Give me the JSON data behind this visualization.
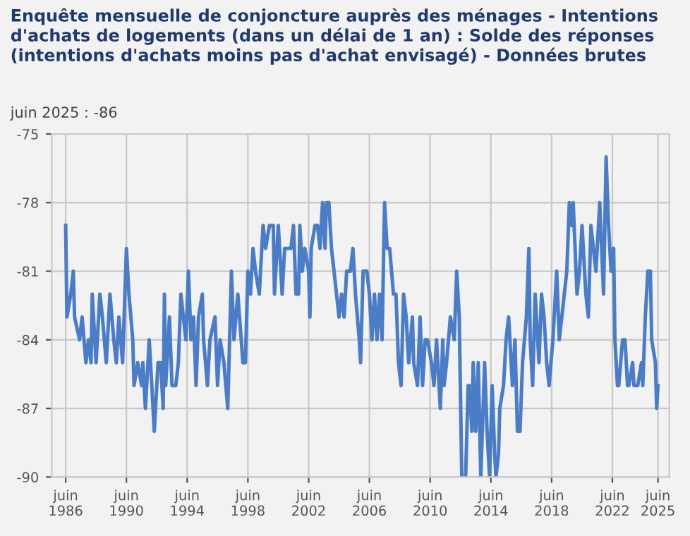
{
  "chart_data": {
    "type": "line",
    "title": "Enquête mensuelle de conjoncture auprès des ménages - Intentions d'achats de logements (dans un délai de 1 an) : Solde des réponses (intentions d'achats moins pas d'achat envisagé) - Données brutes",
    "subtitle": "juin 2025 : -86",
    "series": [
      {
        "color": "#4a7cc7",
        "x": [
          "1986-06",
          "1986-07",
          "1986-10",
          "1986-12",
          "1987-01",
          "1987-05",
          "1987-07",
          "1987-10",
          "1987-12",
          "1988-02",
          "1988-03",
          "1988-06",
          "1988-09",
          "1988-11",
          "1989-02",
          "1989-05",
          "1989-08",
          "1989-10",
          "1989-12",
          "1990-03",
          "1990-06",
          "1990-08",
          "1990-11",
          "1990-12",
          "1991-03",
          "1991-06",
          "1991-07",
          "1991-09",
          "1991-12",
          "1992-02",
          "1992-04",
          "1992-07",
          "1992-09",
          "1992-11",
          "1992-12",
          "1993-01",
          "1993-04",
          "1993-06",
          "1993-09",
          "1993-11",
          "1994-01",
          "1994-03",
          "1994-05",
          "1994-07",
          "1994-09",
          "1994-11",
          "1995-01",
          "1995-03",
          "1995-06",
          "1995-07",
          "1995-10",
          "1995-12",
          "1996-04",
          "1996-06",
          "1996-08",
          "1996-11",
          "1997-02",
          "1997-05",
          "1997-07",
          "1997-10",
          "1998-02",
          "1998-04",
          "1998-06",
          "1998-08",
          "1998-10",
          "1998-12",
          "1999-03",
          "1999-06",
          "1999-08",
          "1999-11",
          "2000-02",
          "2000-03",
          "2000-06",
          "2000-09",
          "2000-11",
          "2001-04",
          "2001-06",
          "2001-08",
          "2001-10",
          "2001-11",
          "2002-01",
          "2002-03",
          "2002-06",
          "2002-07",
          "2002-08",
          "2002-11",
          "2003-01",
          "2003-03",
          "2003-05",
          "2003-07",
          "2003-08",
          "2003-10",
          "2003-12",
          "2004-02",
          "2004-04",
          "2004-06",
          "2004-08",
          "2004-10",
          "2004-12",
          "2005-03",
          "2005-05",
          "2005-07",
          "2005-10",
          "2005-11",
          "2006-01",
          "2006-04",
          "2006-06",
          "2006-08",
          "2006-10",
          "2006-12",
          "2007-02",
          "2007-04",
          "2007-06",
          "2007-08",
          "2007-10",
          "2008-01",
          "2008-03",
          "2008-05",
          "2008-07",
          "2008-09",
          "2008-11",
          "2009-01",
          "2009-04",
          "2009-05",
          "2009-08",
          "2009-10",
          "2009-12",
          "2010-02",
          "2010-04",
          "2010-07",
          "2010-09",
          "2010-11",
          "2011-02",
          "2011-04",
          "2011-05",
          "2011-07",
          "2011-10",
          "2012-01",
          "2012-03",
          "2012-05",
          "2012-07",
          "2012-10",
          "2012-12",
          "2013-01",
          "2013-03",
          "2013-04",
          "2013-06",
          "2013-08",
          "2013-10",
          "2014-01",
          "2014-03",
          "2014-05",
          "2014-07",
          "2014-09",
          "2014-10",
          "2014-12",
          "2015-01",
          "2015-04",
          "2015-06",
          "2015-08",
          "2015-09",
          "2015-11",
          "2016-01",
          "2016-03",
          "2016-05",
          "2016-07",
          "2016-10",
          "2016-12",
          "2017-01",
          "2017-03",
          "2017-05",
          "2017-08",
          "2017-10",
          "2017-12",
          "2018-02",
          "2018-04",
          "2018-07",
          "2018-10",
          "2018-12",
          "2019-02",
          "2019-04",
          "2019-06",
          "2019-08",
          "2019-10",
          "2019-11",
          "2020-02",
          "2020-04",
          "2020-06",
          "2020-09",
          "2020-11",
          "2021-01",
          "2021-03",
          "2021-05",
          "2021-08",
          "2021-11",
          "2022-01",
          "2022-03",
          "2022-05",
          "2022-07",
          "2022-08",
          "2022-10",
          "2022-11",
          "2023-02",
          "2023-04",
          "2023-06",
          "2023-07",
          "2023-10",
          "2023-11",
          "2024-02",
          "2024-05",
          "2024-06",
          "2024-08",
          "2024-10",
          "2024-12",
          "2025-01",
          "2025-04",
          "2025-05",
          "2025-06"
        ],
        "values": [
          -79,
          -83,
          -82,
          -81,
          -83,
          -84,
          -83,
          -85,
          -84,
          -85,
          -82,
          -85,
          -82,
          -83,
          -85,
          -82,
          -84,
          -85,
          -83,
          -85,
          -80,
          -82,
          -84,
          -86,
          -85,
          -86,
          -85,
          -87,
          -84,
          -86,
          -88,
          -85,
          -85,
          -87,
          -82,
          -86,
          -83,
          -86,
          -86,
          -85,
          -82,
          -83,
          -84,
          -81,
          -84,
          -83,
          -86,
          -83,
          -82,
          -84,
          -86,
          -84,
          -83,
          -86,
          -84,
          -85,
          -87,
          -81,
          -84,
          -82,
          -85,
          -85,
          -81,
          -82,
          -80,
          -81,
          -82,
          -79,
          -80,
          -79,
          -79,
          -82,
          -79,
          -82,
          -80,
          -80,
          -79,
          -82,
          -82,
          -79,
          -81,
          -80,
          -81,
          -83,
          -80,
          -79,
          -79,
          -80,
          -78,
          -80,
          -78,
          -78,
          -80,
          -81,
          -82,
          -83,
          -82,
          -83,
          -81,
          -81,
          -80,
          -82,
          -84,
          -85,
          -81,
          -81,
          -82,
          -84,
          -82,
          -84,
          -82,
          -84,
          -78,
          -80,
          -80,
          -82,
          -82,
          -85,
          -86,
          -82,
          -83,
          -85,
          -83,
          -85,
          -86,
          -83,
          -86,
          -84,
          -84,
          -85,
          -86,
          -84,
          -87,
          -84,
          -86,
          -85,
          -83,
          -84,
          -81,
          -83,
          -90,
          -90,
          -86,
          -86,
          -88,
          -85,
          -88,
          -85,
          -90,
          -85,
          -88,
          -90,
          -86,
          -89,
          -90,
          -89,
          -87,
          -86,
          -84,
          -83,
          -84,
          -86,
          -84,
          -88,
          -88,
          -85,
          -83,
          -80,
          -84,
          -86,
          -82,
          -85,
          -82,
          -83,
          -85,
          -86,
          -84,
          -81,
          -84,
          -83,
          -82,
          -81,
          -78,
          -79,
          -78,
          -82,
          -81,
          -79,
          -82,
          -83,
          -79,
          -80,
          -81,
          -78,
          -82,
          -76,
          -79,
          -81,
          -80,
          -84,
          -86,
          -86,
          -84,
          -84,
          -86,
          -86,
          -85,
          -86,
          -86,
          -85,
          -86,
          -83,
          -81,
          -81,
          -84,
          -85,
          -87,
          -86
        ]
      }
    ],
    "xlim": [
      "1985-07",
      "2026-03"
    ],
    "xticks": [
      {
        "value": "1986-06",
        "label": "juin\n1986"
      },
      {
        "value": "1990-06",
        "label": "juin\n1990"
      },
      {
        "value": "1994-06",
        "label": "juin\n1994"
      },
      {
        "value": "1998-06",
        "label": "juin\n1998"
      },
      {
        "value": "2002-06",
        "label": "juin\n2002"
      },
      {
        "value": "2006-06",
        "label": "juin\n2006"
      },
      {
        "value": "2010-06",
        "label": "juin\n2010"
      },
      {
        "value": "2014-06",
        "label": "juin\n2014"
      },
      {
        "value": "2018-06",
        "label": "juin\n2018"
      },
      {
        "value": "2022-06",
        "label": "juin\n2022"
      },
      {
        "value": "2025-06",
        "label": "juin\n2025"
      }
    ],
    "ylim": [
      -90,
      -75
    ],
    "yticks": [
      -90,
      -87,
      -84,
      -81,
      -78,
      -75
    ],
    "grid": true,
    "marker": "none",
    "line_style": "solid"
  }
}
